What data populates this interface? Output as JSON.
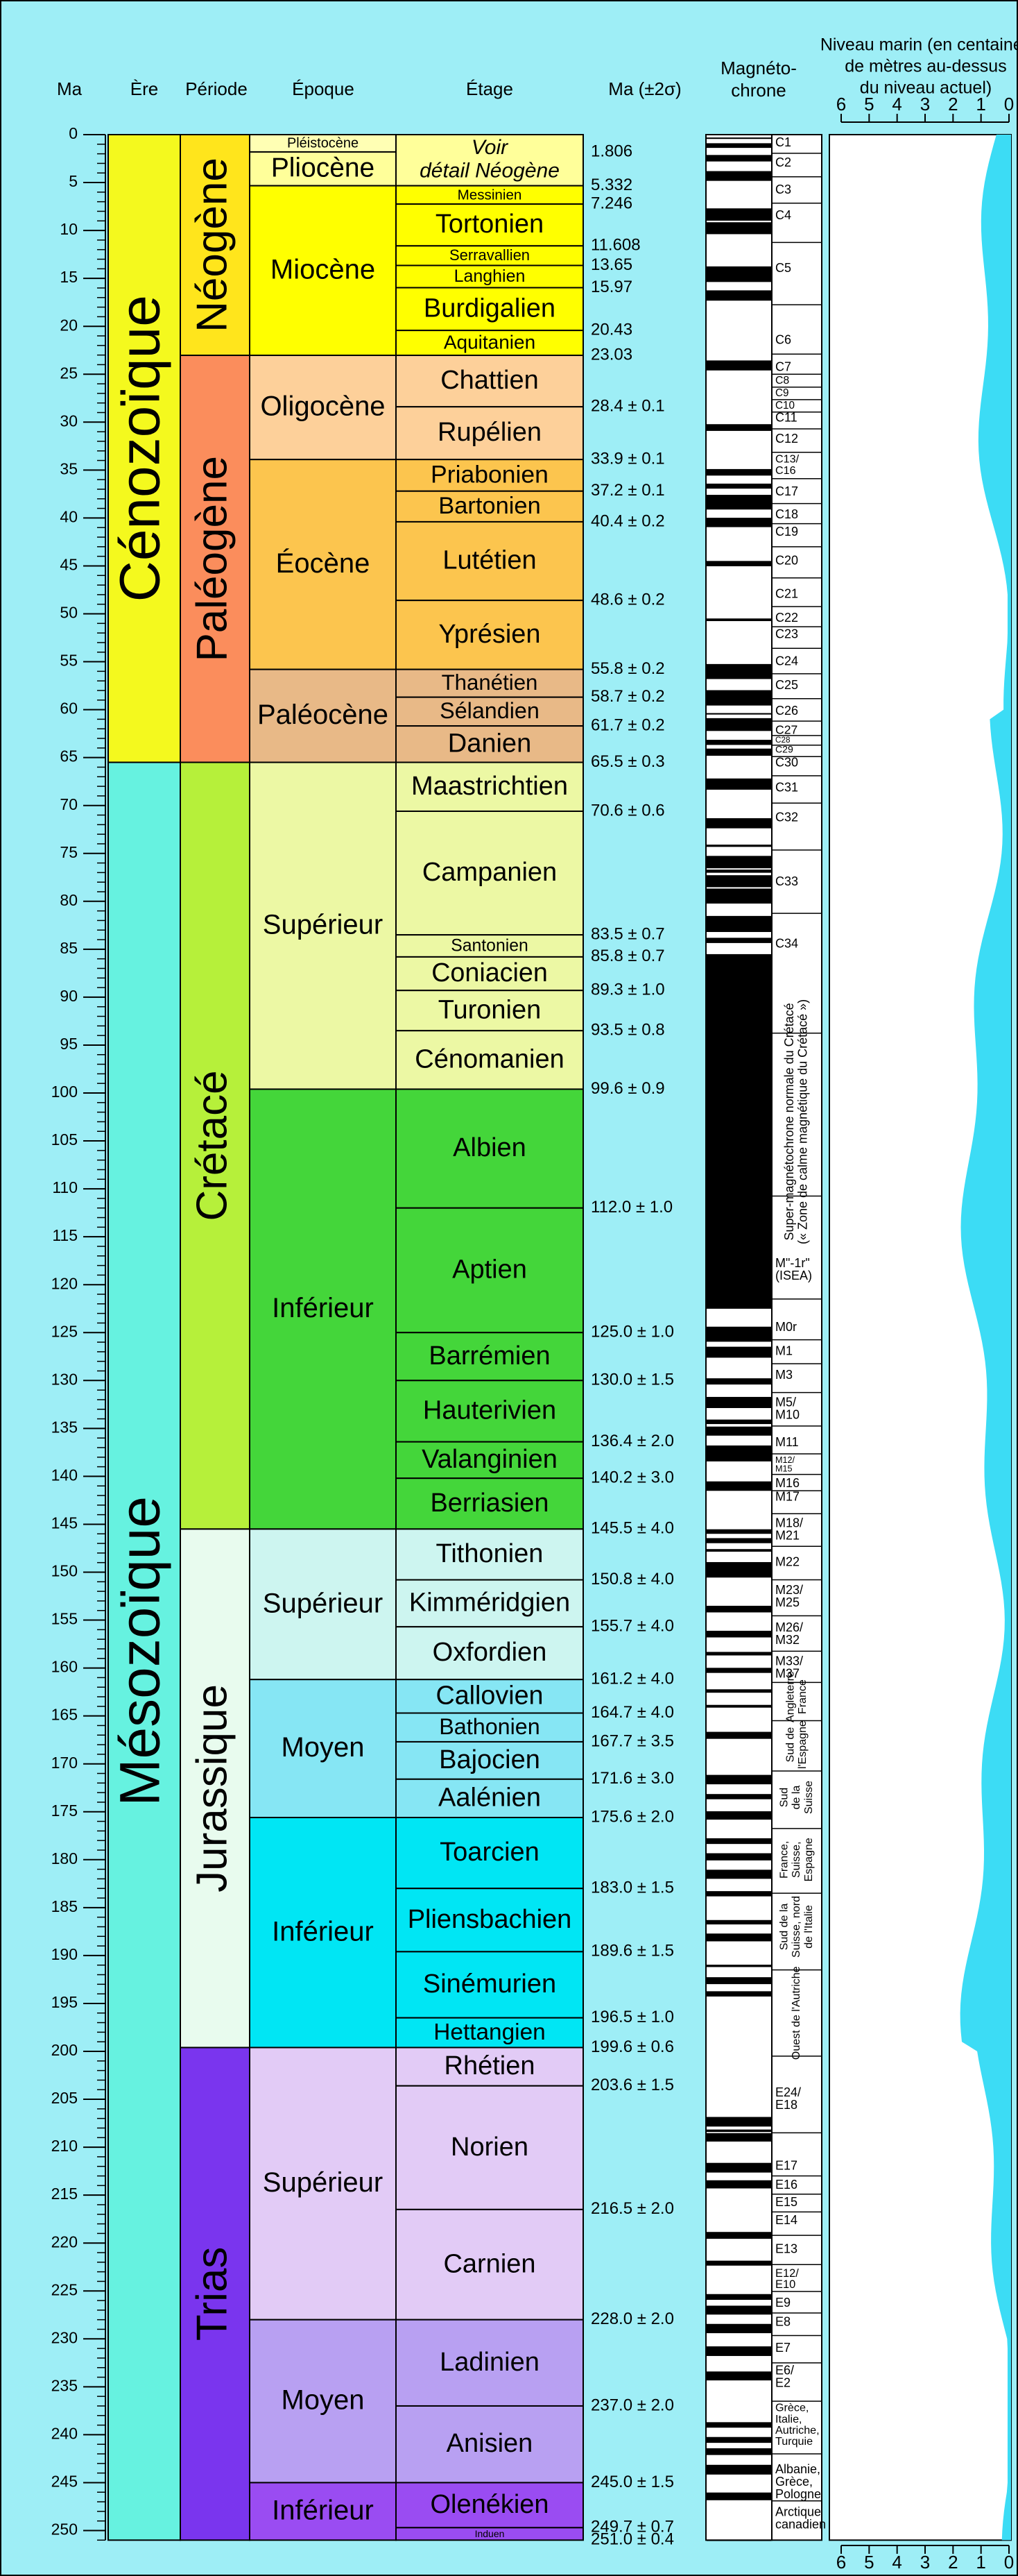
{
  "headers": {
    "ma": "Ma",
    "era": "Ère",
    "period": "Période",
    "epoch": "Époque",
    "stage": "Étage",
    "age": "Ma (±2σ)",
    "magneto": [
      "Magnéto-",
      "chrone"
    ]
  },
  "ma_axis": {
    "ticks": [
      0,
      5,
      10,
      15,
      20,
      25,
      30,
      35,
      40,
      45,
      50,
      55,
      60,
      65,
      70,
      75,
      80,
      85,
      90,
      95,
      100,
      105,
      110,
      115,
      120,
      125,
      130,
      135,
      140,
      145,
      150,
      155,
      160,
      165,
      170,
      175,
      180,
      185,
      190,
      195,
      200,
      205,
      210,
      215,
      220,
      225,
      230,
      235,
      240,
      245,
      250
    ]
  },
  "eras": [
    {
      "name": "Cénozoïque",
      "color": "#f4f91e",
      "periods": [
        {
          "name": "Néogène",
          "color": "#ffe51c",
          "epochs": [
            {
              "name": "Pléistocène",
              "color": "#ffffb4",
              "age": {
                "value": 1.806,
                "label": "1.806"
              },
              "stages": []
            },
            {
              "name": "Pliocène",
              "color": "#ffff9a",
              "stages": [
                {
                  "name_lines": [
                    "Voir",
                    "détail Néogène"
                  ],
                  "age": {
                    "value": 5.332,
                    "label": "5.332"
                  }
                }
              ]
            },
            {
              "name": "Miocène",
              "color": "#ffff00",
              "stages": [
                {
                  "name": "Messinien",
                  "age": {
                    "value": 7.246,
                    "label": "7.246"
                  }
                },
                {
                  "name": "Tortonien",
                  "age": {
                    "value": 11.608,
                    "label": "11.608"
                  }
                },
                {
                  "name": "Serravallien",
                  "age": {
                    "value": 13.65,
                    "label": "13.65"
                  }
                },
                {
                  "name": "Langhien",
                  "age": {
                    "value": 15.97,
                    "label": "15.97"
                  }
                },
                {
                  "name": "Burdigalien",
                  "age": {
                    "value": 20.43,
                    "label": "20.43"
                  }
                },
                {
                  "name": "Aquitanien",
                  "age": {
                    "value": 23.03,
                    "label": "23.03"
                  }
                }
              ]
            }
          ]
        },
        {
          "name": "Paléogène",
          "color": "#fb8d5c",
          "epochs": [
            {
              "name": "Oligocène",
              "color": "#fdd09a",
              "stages": [
                {
                  "name": "Chattien",
                  "age": {
                    "value": 28.4,
                    "label": "28.4 ± 0.1"
                  }
                },
                {
                  "name": "Rupélien",
                  "age": {
                    "value": 33.9,
                    "label": "33.9 ± 0.1"
                  }
                }
              ]
            },
            {
              "name": "Éocène",
              "color": "#fcc54e",
              "stages": [
                {
                  "name": "Priabonien",
                  "age": {
                    "value": 37.2,
                    "label": "37.2 ± 0.1"
                  }
                },
                {
                  "name": "Bartonien",
                  "age": {
                    "value": 40.4,
                    "label": "40.4 ± 0.2"
                  }
                },
                {
                  "name": "Lutétien",
                  "age": {
                    "value": 48.6,
                    "label": "48.6 ± 0.2"
                  }
                },
                {
                  "name": "Yprésien",
                  "age": {
                    "value": 55.8,
                    "label": "55.8 ± 0.2"
                  }
                }
              ]
            },
            {
              "name": "Paléocène",
              "color": "#e8b987",
              "stages": [
                {
                  "name": "Thanétien",
                  "age": {
                    "value": 58.7,
                    "label": "58.7 ± 0.2"
                  }
                },
                {
                  "name": "Sélandien",
                  "age": {
                    "value": 61.7,
                    "label": "61.7 ± 0.2"
                  }
                },
                {
                  "name": "Danien",
                  "age": {
                    "value": 65.5,
                    "label": "65.5 ± 0.3"
                  }
                }
              ]
            }
          ]
        }
      ]
    },
    {
      "name": "Mésozoïque",
      "color": "#66f2e0",
      "periods": [
        {
          "name": "Crétacé",
          "color": "#b6f03a",
          "epochs": [
            {
              "name": "Supérieur",
              "color": "#ecf8a4",
              "stages": [
                {
                  "name": "Maastrichtien",
                  "age": {
                    "value": 70.6,
                    "label": "70.6 ± 0.6"
                  }
                },
                {
                  "name": "Campanien",
                  "age": {
                    "value": 83.5,
                    "label": "83.5 ± 0.7"
                  }
                },
                {
                  "name": "Santonien",
                  "age": {
                    "value": 85.8,
                    "label": "85.8 ± 0.7"
                  }
                },
                {
                  "name": "Coniacien",
                  "age": {
                    "value": 89.3,
                    "label": "89.3 ± 1.0"
                  }
                },
                {
                  "name": "Turonien",
                  "age": {
                    "value": 93.5,
                    "label": "93.5 ± 0.8"
                  }
                },
                {
                  "name": "Cénomanien",
                  "age": {
                    "value": 99.6,
                    "label": "99.6 ± 0.9"
                  }
                }
              ]
            },
            {
              "name": "Inférieur",
              "color": "#44d63a",
              "stages": [
                {
                  "name": "Albien",
                  "age": {
                    "value": 112.0,
                    "label": "112.0 ± 1.0"
                  }
                },
                {
                  "name": "Aptien",
                  "age": {
                    "value": 125.0,
                    "label": "125.0 ± 1.0"
                  }
                },
                {
                  "name": "Barrémien",
                  "age": {
                    "value": 130.0,
                    "label": "130.0 ± 1.5"
                  }
                },
                {
                  "name": "Hauterivien",
                  "age": {
                    "value": 136.4,
                    "label": "136.4 ± 2.0"
                  }
                },
                {
                  "name": "Valanginien",
                  "age": {
                    "value": 140.2,
                    "label": "140.2 ± 3.0"
                  }
                },
                {
                  "name": "Berriasien",
                  "age": {
                    "value": 145.5,
                    "label": "145.5 ± 4.0"
                  }
                }
              ]
            }
          ]
        },
        {
          "name": "Jurassique",
          "color": "#e8fbee",
          "epochs": [
            {
              "name": "Supérieur",
              "color": "#cdf5f0",
              "stages": [
                {
                  "name": "Tithonien",
                  "age": {
                    "value": 150.8,
                    "label": "150.8 ± 4.0"
                  }
                },
                {
                  "name": "Kimméridgien",
                  "age": {
                    "value": 155.7,
                    "label": "155.7 ± 4.0"
                  }
                },
                {
                  "name": "Oxfordien",
                  "age": {
                    "value": 161.2,
                    "label": "161.2 ± 4.0"
                  }
                }
              ]
            },
            {
              "name": "Moyen",
              "color": "#86e6f4",
              "stages": [
                {
                  "name": "Callovien",
                  "age": {
                    "value": 164.7,
                    "label": "164.7 ± 4.0"
                  }
                },
                {
                  "name": "Bathonien",
                  "age": {
                    "value": 167.7,
                    "label": "167.7 ± 3.5"
                  }
                },
                {
                  "name": "Bajocien",
                  "age": {
                    "value": 171.6,
                    "label": "171.6 ± 3.0"
                  }
                },
                {
                  "name": "Aalénien",
                  "age": {
                    "value": 175.6,
                    "label": "175.6 ± 2.0"
                  }
                }
              ]
            },
            {
              "name": "Inférieur",
              "color": "#00e6f4",
              "text_color": "#ffffff",
              "stages": [
                {
                  "name": "Toarcien",
                  "age": {
                    "value": 183.0,
                    "label": "183.0 ± 1.5"
                  }
                },
                {
                  "name": "Pliensbachien",
                  "age": {
                    "value": 189.6,
                    "label": "189.6 ± 1.5"
                  }
                },
                {
                  "name": "Sinémurien",
                  "age": {
                    "value": 196.5,
                    "label": "196.5 ± 1.0"
                  }
                },
                {
                  "name": "Hettangien",
                  "age": {
                    "value": 199.6,
                    "label": "199.6 ± 0.6"
                  }
                }
              ]
            }
          ]
        },
        {
          "name": "Trias",
          "color": "#7a35ee",
          "text_color": "#ffffff",
          "epochs": [
            {
              "name": "Supérieur",
              "color": "#e2cbf6",
              "stages": [
                {
                  "name": "Rhétien",
                  "age": {
                    "value": 203.6,
                    "label": "203.6 ± 1.5"
                  }
                },
                {
                  "name": "Norien",
                  "age": {
                    "value": 216.5,
                    "label": "216.5 ± 2.0"
                  }
                },
                {
                  "name": "Carnien",
                  "age": {
                    "value": 228.0,
                    "label": "228.0 ± 2.0"
                  }
                }
              ]
            },
            {
              "name": "Moyen",
              "color": "#b8a0f2",
              "stages": [
                {
                  "name": "Ladinien",
                  "age": {
                    "value": 237.0,
                    "label": "237.0 ± 2.0"
                  }
                },
                {
                  "name": "Anisien",
                  "age": {
                    "value": 245.0,
                    "label": "245.0 ± 1.5"
                  }
                }
              ]
            },
            {
              "name": "Inférieur",
              "color": "#9a4cf2",
              "text_color": "#ffffff",
              "stages": [
                {
                  "name": "Olenékien",
                  "age": {
                    "value": 249.7,
                    "label": "249.7 ± 0.7"
                  }
                },
                {
                  "name": "Induen",
                  "age": {
                    "value": 251.0,
                    "label": "251.0 ± 0.4"
                  }
                }
              ]
            }
          ]
        }
      ]
    }
  ],
  "magnetochrons": [
    [
      "C1"
    ],
    [
      "C2"
    ],
    [
      "C3"
    ],
    [
      "C4"
    ],
    [
      "C5"
    ],
    [
      "C6"
    ],
    [
      "C7"
    ],
    [
      "C8"
    ],
    [
      "C9"
    ],
    [
      "C10"
    ],
    [
      "C11"
    ],
    [
      "C12"
    ],
    [
      "C13/",
      "C16"
    ],
    [
      "C17"
    ],
    [
      "C18"
    ],
    [
      "C19"
    ],
    [
      "C20"
    ],
    [
      "C21"
    ],
    [
      "C22"
    ],
    [
      "C23"
    ],
    [
      "C24"
    ],
    [
      "C25"
    ],
    [
      "C26"
    ],
    [
      "C27"
    ],
    [
      "C28"
    ],
    [
      "C29"
    ],
    [
      "C30"
    ],
    [
      "C31"
    ],
    [
      "C32"
    ],
    [
      "C33"
    ],
    [
      "C34"
    ],
    [
      "Super-magnétochrone normale du Crétacé",
      "(« Zone de calme magnétique du Crétacé »)"
    ],
    [
      "M\"-1r\"",
      "(ISEA)"
    ],
    [
      "M0r"
    ],
    [
      "M1"
    ],
    [
      "M3"
    ],
    [
      "M5/",
      "M10"
    ],
    [
      "M11"
    ],
    [
      "M12/",
      "M15"
    ],
    [
      "M16"
    ],
    [
      "M17"
    ],
    [
      "M18/",
      "M21"
    ],
    [
      "M22"
    ],
    [
      "M23/",
      "M25"
    ],
    [
      "M26/",
      "M32"
    ],
    [
      "M33/",
      "M37"
    ],
    [
      "Angleterre",
      "France"
    ],
    [
      "Sud de",
      "l'Espagne"
    ],
    [
      "Sud",
      "de la",
      "Suisse"
    ],
    [
      "France,",
      "Suisse,",
      "Espagne"
    ],
    [
      "Sud de la",
      "Suisse, nord",
      "de l'Italie"
    ],
    [
      "Ouest de l'Autriche"
    ],
    [
      "E24/",
      "E18"
    ],
    [
      "E17"
    ],
    [
      "E16"
    ],
    [
      "E15"
    ],
    [
      "E14"
    ],
    [
      "E13"
    ],
    [
      "E12/",
      "E10"
    ],
    [
      "E9"
    ],
    [
      "E8"
    ],
    [
      "E7"
    ],
    [
      "E6/",
      "E2"
    ],
    [
      "Grèce,",
      "Italie,",
      "Autriche,",
      "Turquie"
    ],
    [
      "Albanie,",
      "Grèce,",
      "Pologne"
    ],
    [
      "Arctique",
      "canadien"
    ]
  ],
  "sea_level": {
    "title_lines": [
      "Niveau marin (en centaines",
      "de mètres au-dessus",
      "du niveau actuel)"
    ],
    "ticks": [
      6,
      5,
      4,
      3,
      2,
      1,
      0
    ]
  }
}
